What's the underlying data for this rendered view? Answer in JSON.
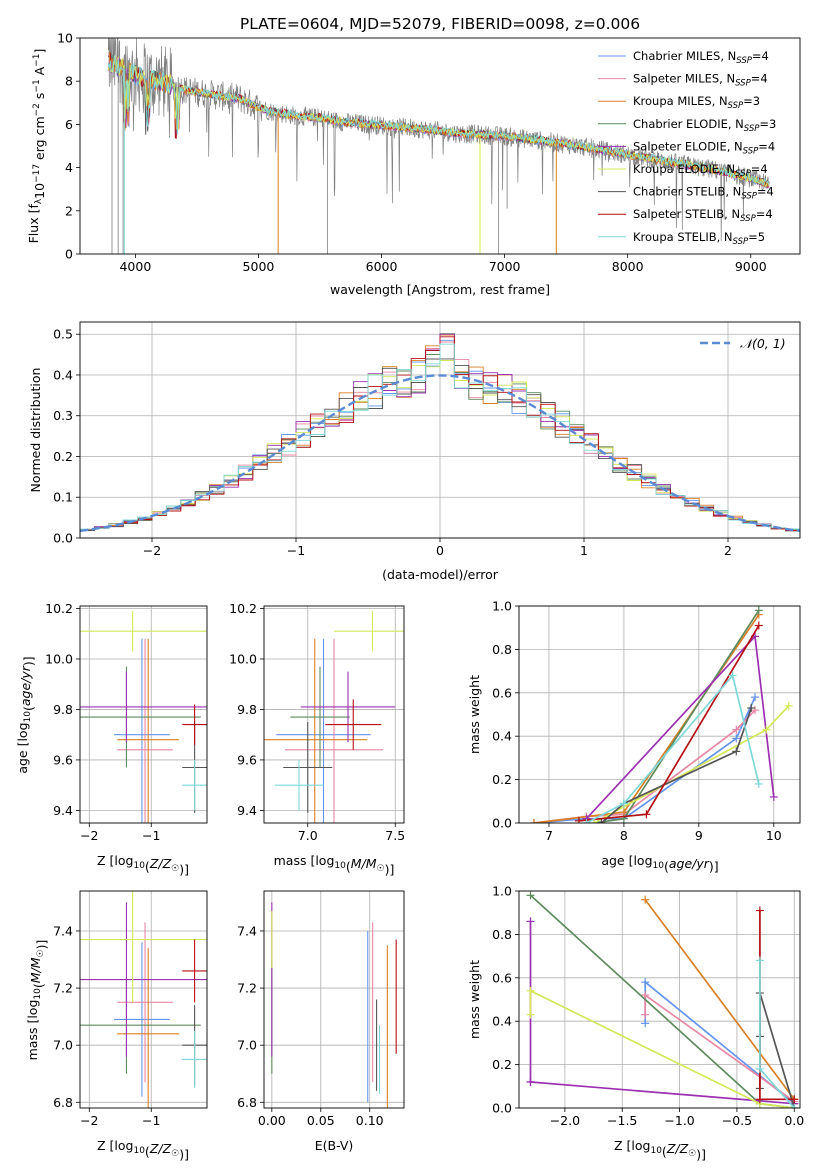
{
  "title": "PLATE=0604, MJD=52079, FIBERID=0098, z=0.006",
  "colors": {
    "series": [
      "#6495ed",
      "#e887a3",
      "#d98027",
      "#5e8a5e",
      "#9b30b0",
      "#d4e85a",
      "#555555",
      "#b40f14",
      "#7fd8d8"
    ]
  },
  "chart_data": [
    {
      "id": "spectrum",
      "type": "line",
      "xlabel": "wavelength [Angstrom, rest frame]",
      "ylabel": "Flux [f_λ10^-17 erg cm^-2 s^-1 A^-1]",
      "ylabel_parts": {
        "main": "Flux [f",
        "sub": "λ",
        "mid": "10",
        "sup1": "−17",
        "rest1": " erg cm",
        "sup2": "−2",
        "rest2": " s",
        "sup3": "−1",
        "rest3": " A",
        "sup4": "−1",
        "end": "]"
      },
      "xlim": [
        3550,
        9400
      ],
      "ylim": [
        0,
        10
      ],
      "xticks": [
        4000,
        5000,
        6000,
        7000,
        8000,
        9000
      ],
      "yticks": [
        0,
        2,
        4,
        6,
        8,
        10
      ],
      "continuum": [
        [
          3780,
          8.9
        ],
        [
          3900,
          8.6
        ],
        [
          4000,
          8.3
        ],
        [
          4100,
          8.1
        ],
        [
          4200,
          8.0
        ],
        [
          4300,
          7.8
        ],
        [
          4400,
          7.6
        ],
        [
          4500,
          7.5
        ],
        [
          4700,
          7.3
        ],
        [
          4850,
          7.2
        ],
        [
          4950,
          6.9
        ],
        [
          5100,
          6.6
        ],
        [
          5300,
          6.4
        ],
        [
          5500,
          6.3
        ],
        [
          5700,
          6.1
        ],
        [
          6000,
          5.95
        ],
        [
          6300,
          5.8
        ],
        [
          6600,
          5.6
        ],
        [
          7000,
          5.45
        ],
        [
          7300,
          5.25
        ],
        [
          7600,
          5.0
        ],
        [
          7900,
          4.7
        ],
        [
          8100,
          4.5
        ],
        [
          8400,
          4.2
        ],
        [
          8700,
          3.9
        ],
        [
          9000,
          3.5
        ],
        [
          9150,
          3.2
        ]
      ],
      "series": [
        {
          "name": "Chabrier MILES, N_SSP=4",
          "label": "Chabrier MILES, N",
          "sub": "SSP",
          "val": "=4"
        },
        {
          "name": "Salpeter MILES, N_SSP=4",
          "label": "Salpeter MILES, N",
          "sub": "SSP",
          "val": "=4"
        },
        {
          "name": "Kroupa MILES, N_SSP=3",
          "label": "Kroupa MILES, N",
          "sub": "SSP",
          "val": "=3"
        },
        {
          "name": "Chabrier ELODIE, N_SSP=3",
          "label": "Chabrier ELODIE, N",
          "sub": "SSP",
          "val": "=3"
        },
        {
          "name": "Salpeter ELODIE, N_SSP=4",
          "label": "Salpeter ELODIE, N",
          "sub": "SSP",
          "val": "=4"
        },
        {
          "name": "Kroupa ELODIE, N_SSP=4",
          "label": "Kroupa ELODIE, N",
          "sub": "SSP",
          "val": "=4"
        },
        {
          "name": "Chabrier STELIB, N_SSP=4",
          "label": "Chabrier STELIB, N",
          "sub": "SSP",
          "val": "=4"
        },
        {
          "name": "Salpeter STELIB, N_SSP=4",
          "label": "Salpeter STELIB, N",
          "sub": "SSP",
          "val": "=4"
        },
        {
          "name": "Kroupa STELIB, N_SSP=5",
          "label": "Kroupa STELIB, N",
          "sub": "SSP",
          "val": "=5"
        }
      ]
    },
    {
      "id": "residuals",
      "type": "line",
      "xlabel": "(data-model)/error",
      "ylabel": "Normed distribution",
      "xlim": [
        -2.5,
        2.5
      ],
      "ylim": [
        0,
        0.53
      ],
      "xticks": [
        -2,
        -1,
        0,
        1,
        2
      ],
      "yticks": [
        0.0,
        0.1,
        0.2,
        0.3,
        0.4,
        0.5
      ],
      "grid": true,
      "legend": "𝒩(0, 1)",
      "legend_position": "top-right",
      "bin_width": 0.1
    },
    {
      "id": "age_vs_Z",
      "type": "scatter",
      "xlabel": "Z [log10(Z/Z☉)]",
      "ylabel": "age  [log10(age/yr)]",
      "xlim": [
        -2.15,
        -0.1
      ],
      "ylim": [
        9.35,
        10.21
      ],
      "xticks": [
        -2,
        -1
      ],
      "yticks": [
        9.4,
        9.6,
        9.8,
        10.0,
        10.2
      ],
      "grid": true,
      "points": [
        {
          "x": -1.15,
          "xerr": 0.45,
          "y": 9.7,
          "yerr": 0.38
        },
        {
          "x": -1.1,
          "xerr": 0.45,
          "y": 9.64,
          "yerr": 0.44
        },
        {
          "x": -1.05,
          "xerr": 0.5,
          "y": 9.68,
          "yerr": 0.4
        },
        {
          "x": -1.4,
          "xerr": 1.2,
          "y": 9.77,
          "yerr": 0.2
        },
        {
          "x": -1.4,
          "xerr": 1.9,
          "y": 9.81,
          "yerr": 0.14
        },
        {
          "x": -1.3,
          "xerr": 1.8,
          "y": 10.11,
          "yerr": 0.08
        },
        {
          "x": -0.3,
          "xerr": 0.2,
          "y": 9.57,
          "yerr": 0.18
        },
        {
          "x": -0.3,
          "xerr": 0.2,
          "y": 9.74,
          "yerr": 0.08
        },
        {
          "x": -0.3,
          "xerr": 0.2,
          "y": 9.5,
          "yerr": 0.1
        }
      ]
    },
    {
      "id": "age_vs_mass",
      "type": "scatter",
      "xlabel": "mass [log10(M/M☉)]",
      "xlim": [
        6.75,
        7.55
      ],
      "ylim": [
        9.35,
        10.21
      ],
      "xticks": [
        7.0,
        7.5
      ],
      "yticks": [
        9.4,
        9.6,
        9.8,
        10.0,
        10.2
      ],
      "grid": true,
      "points": [
        {
          "x": 7.09,
          "xerr": 0.27,
          "y": 9.7,
          "yerr": 0.38
        },
        {
          "x": 7.15,
          "xerr": 0.28,
          "y": 9.64,
          "yerr": 0.44
        },
        {
          "x": 7.04,
          "xerr": 0.3,
          "y": 9.68,
          "yerr": 0.4
        },
        {
          "x": 7.07,
          "xerr": 0.17,
          "y": 9.77,
          "yerr": 0.2
        },
        {
          "x": 7.23,
          "xerr": 0.27,
          "y": 9.81,
          "yerr": 0.14
        },
        {
          "x": 7.37,
          "xerr": 0.22,
          "y": 10.11,
          "yerr": 0.08
        },
        {
          "x": 7.0,
          "xerr": 0.14,
          "y": 9.57,
          "yerr": 0.18
        },
        {
          "x": 7.26,
          "xerr": 0.16,
          "y": 9.74,
          "yerr": 0.1
        },
        {
          "x": 6.95,
          "xerr": 0.14,
          "y": 9.5,
          "yerr": 0.1
        }
      ]
    },
    {
      "id": "weight_vs_age",
      "type": "line",
      "xlabel": "age  [log10(age/yr)]",
      "ylabel": "mass weight",
      "xlim": [
        6.6,
        10.35
      ],
      "ylim": [
        0,
        1.0
      ],
      "xticks": [
        7,
        8,
        9,
        10
      ],
      "yticks": [
        0.0,
        0.2,
        0.4,
        0.6,
        0.8,
        1.0
      ],
      "grid": true,
      "series": [
        {
          "x": [
            6.8,
            7.5,
            8.0,
            9.5,
            9.75
          ],
          "y": [
            0.0,
            0.02,
            0.02,
            0.39,
            0.58
          ]
        },
        {
          "x": [
            6.8,
            7.5,
            8.0,
            9.5,
            9.75
          ],
          "y": [
            0.0,
            0.03,
            0.04,
            0.43,
            0.52
          ]
        },
        {
          "x": [
            6.8,
            8.0,
            9.8
          ],
          "y": [
            0.0,
            0.05,
            0.96
          ]
        },
        {
          "x": [
            7.6,
            8.0,
            9.8
          ],
          "y": [
            0.0,
            0.02,
            0.98
          ]
        },
        {
          "x": [
            7.5,
            9.75,
            10.0
          ],
          "y": [
            0.02,
            0.86,
            0.12
          ]
        },
        {
          "x": [
            7.6,
            9.9,
            10.2
          ],
          "y": [
            0.0,
            0.43,
            0.54
          ]
        },
        {
          "x": [
            7.7,
            8.0,
            9.5,
            9.7
          ],
          "y": [
            0.0,
            0.09,
            0.33,
            0.53
          ]
        },
        {
          "x": [
            7.4,
            8.3,
            9.8
          ],
          "y": [
            0.01,
            0.04,
            0.91
          ]
        },
        {
          "x": [
            7.5,
            8.0,
            9.45,
            9.8
          ],
          "y": [
            0.0,
            0.09,
            0.68,
            0.18
          ]
        }
      ]
    },
    {
      "id": "mass_vs_Z",
      "type": "scatter",
      "xlabel": "Z [log10(Z/Z☉)]",
      "ylabel": "mass [log10(M/M☉)]",
      "xlim": [
        -2.15,
        -0.1
      ],
      "ylim": [
        6.78,
        7.54
      ],
      "xticks": [
        -2,
        -1
      ],
      "yticks": [
        6.8,
        7.0,
        7.2,
        7.4
      ],
      "grid": true,
      "points": [
        {
          "x": -1.15,
          "xerr": 0.45,
          "y": 7.09,
          "yerr": 0.27
        },
        {
          "x": -1.1,
          "xerr": 0.45,
          "y": 7.15,
          "yerr": 0.28
        },
        {
          "x": -1.05,
          "xerr": 0.5,
          "y": 7.04,
          "yerr": 0.3
        },
        {
          "x": -1.4,
          "xerr": 1.2,
          "y": 7.07,
          "yerr": 0.17
        },
        {
          "x": -1.4,
          "xerr": 1.9,
          "y": 7.23,
          "yerr": 0.27
        },
        {
          "x": -1.3,
          "xerr": 1.8,
          "y": 7.37,
          "yerr": 0.22
        },
        {
          "x": -0.3,
          "xerr": 0.2,
          "y": 7.0,
          "yerr": 0.14
        },
        {
          "x": -0.3,
          "xerr": 0.2,
          "y": 7.26,
          "yerr": 0.11
        },
        {
          "x": -0.3,
          "xerr": 0.2,
          "y": 6.95,
          "yerr": 0.1
        }
      ]
    },
    {
      "id": "mass_vs_EBV",
      "type": "scatter",
      "xlabel": "E(B-V)",
      "xlim": [
        -0.008,
        0.135
      ],
      "ylim": [
        6.78,
        7.54
      ],
      "xticks": [
        0.0,
        0.05,
        0.1
      ],
      "xticklabels": [
        "0.00",
        "0.05",
        "0.10"
      ],
      "yticks": [
        6.8,
        7.0,
        7.2,
        7.4
      ],
      "grid": true,
      "points": [
        {
          "x": 0.098,
          "y": 7.1,
          "yerr": 0.3
        },
        {
          "x": 0.103,
          "y": 7.15,
          "yerr": 0.28
        },
        {
          "x": 0.118,
          "y": 7.05,
          "yerr": 0.3
        },
        {
          "x": 0.0,
          "y": 7.1,
          "yerr": 0.2
        },
        {
          "x": 0.0,
          "y": 7.23,
          "yerr": 0.27
        },
        {
          "x": 0.0,
          "y": 7.37,
          "yerr": 0.1
        },
        {
          "x": 0.107,
          "y": 7.0,
          "yerr": 0.16
        },
        {
          "x": 0.127,
          "y": 7.17,
          "yerr": 0.2
        },
        {
          "x": 0.11,
          "y": 6.95,
          "yerr": 0.12
        }
      ]
    },
    {
      "id": "weight_vs_Z",
      "type": "line",
      "xlabel": "Z [log10(Z/Z☉)]",
      "ylabel": "mass weight",
      "xlim": [
        -2.4,
        0.05
      ],
      "ylim": [
        0,
        1.0
      ],
      "xticks": [
        -2.0,
        -1.5,
        -1.0,
        -0.5,
        0.0
      ],
      "yticks": [
        0.0,
        0.2,
        0.4,
        0.6,
        0.8,
        1.0
      ],
      "grid": true,
      "series": [
        {
          "x": [
            -1.3,
            -1.3,
            0.0
          ],
          "y": [
            0.39,
            0.58,
            0.02
          ]
        },
        {
          "x": [
            -1.3,
            -1.3,
            0.0
          ],
          "y": [
            0.43,
            0.52,
            0.03
          ]
        },
        {
          "x": [
            -1.3,
            0.0
          ],
          "y": [
            0.96,
            0.04
          ]
        },
        {
          "x": [
            -2.3,
            -0.3,
            0.0
          ],
          "y": [
            0.98,
            0.02,
            0.0
          ]
        },
        {
          "x": [
            -2.3,
            -2.3,
            -2.3,
            0.0
          ],
          "y": [
            0.86,
            0.12,
            0.12,
            0.02
          ]
        },
        {
          "x": [
            -2.3,
            -2.3,
            -0.3,
            0.0
          ],
          "y": [
            0.43,
            0.54,
            0.02,
            0.0
          ]
        },
        {
          "x": [
            -0.3,
            -0.3,
            -0.3,
            0.0
          ],
          "y": [
            0.09,
            0.33,
            0.53,
            0.0
          ]
        },
        {
          "x": [
            -0.3,
            -0.3,
            0.0
          ],
          "y": [
            0.91,
            0.04,
            0.04
          ]
        },
        {
          "x": [
            -0.3,
            -0.3,
            0.0
          ],
          "y": [
            0.68,
            0.18,
            0.0
          ]
        }
      ]
    }
  ]
}
